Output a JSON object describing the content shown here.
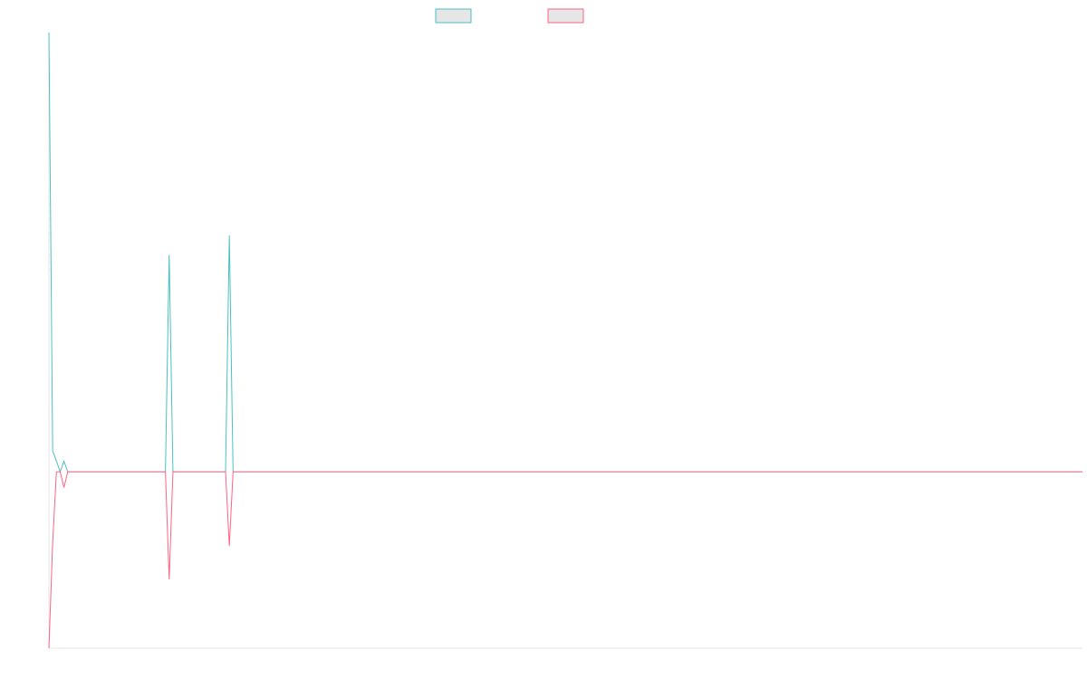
{
  "chart_data": {
    "type": "line",
    "x": [
      0,
      1,
      2,
      3,
      4,
      5,
      31,
      32,
      33,
      47,
      48,
      49,
      275
    ],
    "xlim": [
      0,
      275
    ],
    "ylim": [
      -100,
      249
    ],
    "series": [
      {
        "color": "#4bc0c0",
        "values": [
          249,
          12,
          6,
          0,
          6,
          0,
          0,
          123,
          0,
          0,
          134,
          0,
          0
        ]
      },
      {
        "color": "#ff6384",
        "values": [
          -100,
          -40,
          0,
          0,
          -9,
          0,
          0,
          -61,
          0,
          0,
          -42,
          0,
          0
        ]
      }
    ]
  }
}
